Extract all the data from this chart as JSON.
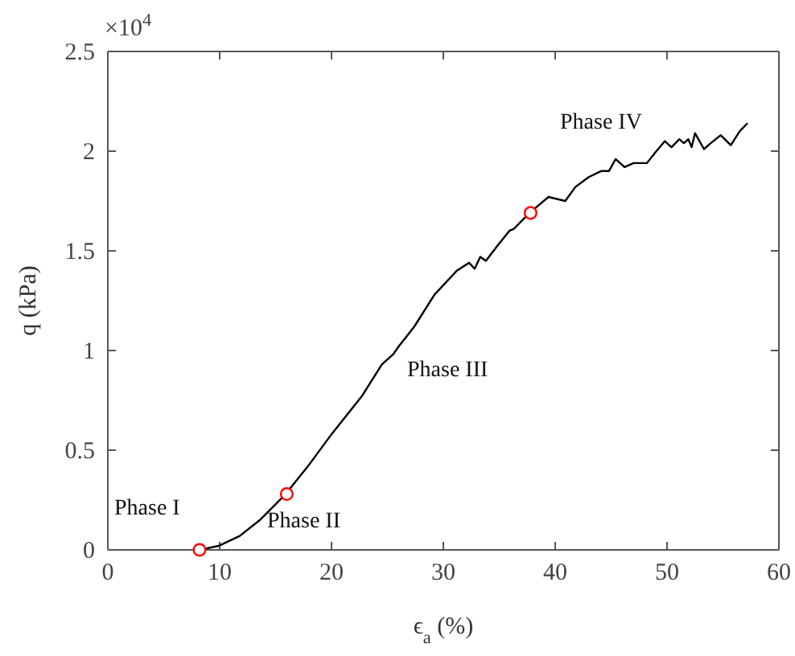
{
  "chart_data": {
    "type": "line",
    "xlabel": "ϵ$_{a}$ (%)",
    "ylabel": "q (kPa)",
    "xlim": [
      0,
      60
    ],
    "xticks": [
      0,
      10,
      20,
      30,
      40,
      50,
      60
    ],
    "ylim": [
      0,
      2.5
    ],
    "yticks": [
      0,
      0.5,
      1,
      1.5,
      2,
      2.5
    ],
    "grid": false,
    "series": [
      {
        "color": "#000000",
        "marker": "none",
        "x": [
          8.2,
          9.9,
          11.8,
          13.6,
          15.9,
          17.9,
          20.0,
          22.7,
          24.5,
          25.5,
          26.0,
          27.4,
          29.2,
          31.2,
          32.3,
          32.8,
          33.3,
          33.8,
          34.9,
          35.9,
          36.3,
          37.7,
          39.4,
          40.9,
          41.8,
          43.0,
          44.1,
          44.8,
          45.4,
          46.2,
          47.0,
          48.2,
          48.9,
          49.8,
          50.4,
          51.1,
          51.5,
          51.9,
          52.2,
          52.5,
          53.3,
          53.9,
          54.8,
          55.7,
          56.5,
          57.2
        ],
        "values": [
          0,
          0.02,
          0.07,
          0.15,
          0.28,
          0.42,
          0.58,
          0.77,
          0.93,
          0.98,
          1.02,
          1.12,
          1.28,
          1.4,
          1.44,
          1.41,
          1.47,
          1.45,
          1.53,
          1.6,
          1.61,
          1.69,
          1.77,
          1.75,
          1.82,
          1.87,
          1.9,
          1.9,
          1.96,
          1.92,
          1.94,
          1.94,
          1.99,
          2.05,
          2.02,
          2.06,
          2.04,
          2.06,
          2.02,
          2.09,
          2.01,
          2.04,
          2.08,
          2.03,
          2.1,
          2.14
        ]
      },
      {
        "type": "scatter",
        "color": "#ff0000",
        "marker": "circle",
        "x": [
          8.2,
          16.0,
          37.8
        ],
        "values": [
          0,
          0.28,
          1.69
        ]
      }
    ],
    "annotations": [
      "×10$^{4}$",
      "Phase I",
      "Phase II",
      "Phase III",
      "Phase IV"
    ]
  }
}
